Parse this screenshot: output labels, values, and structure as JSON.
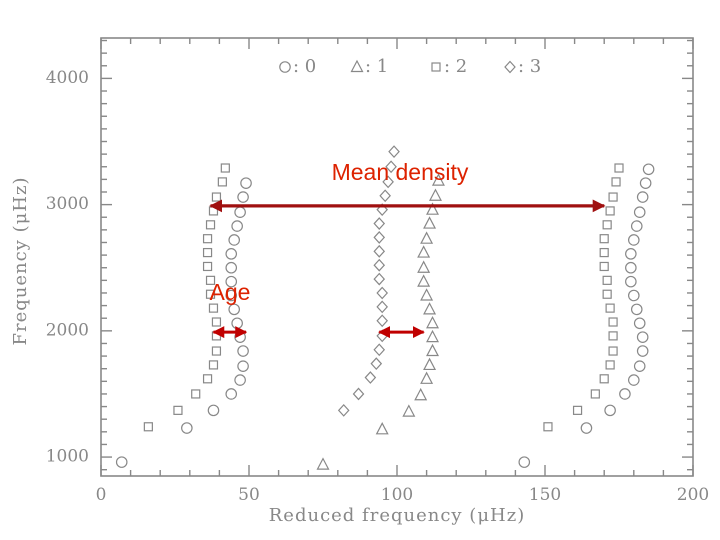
{
  "chart_data": {
    "type": "scatter",
    "title": "",
    "xlabel": "Reduced frequency (μHz)",
    "ylabel": "Frequency (μHz)",
    "xlim": [
      0,
      200
    ],
    "ylim": [
      850,
      4320
    ],
    "x_ticks": [
      0,
      50,
      100,
      150,
      200
    ],
    "x_tick_labels": [
      "0",
      "50",
      "100",
      "150",
      "200"
    ],
    "y_ticks": [
      1000,
      2000,
      3000,
      4000
    ],
    "y_tick_labels": [
      "1000",
      "2000",
      "3000",
      "4000"
    ],
    "grid": false,
    "legend": {
      "placement": "top",
      "entries": [
        {
          "marker": "circle",
          "label": ": 0"
        },
        {
          "marker": "triangle",
          "label": ": 1"
        },
        {
          "marker": "square",
          "label": ": 2"
        },
        {
          "marker": "diamond",
          "label": ": 3"
        }
      ]
    },
    "series": [
      {
        "name": "l = 0",
        "marker": "circle",
        "x": [
          7,
          29,
          38,
          44,
          47,
          48,
          48,
          47,
          46,
          45,
          44,
          44,
          44,
          44,
          45,
          46,
          47,
          48,
          49,
          143,
          164,
          172,
          177,
          180,
          182,
          183,
          183,
          182,
          181,
          180,
          179,
          179,
          179,
          180,
          181,
          182,
          183,
          184,
          185
        ],
        "y": [
          960,
          1230,
          1370,
          1500,
          1610,
          1720,
          1840,
          1950,
          2060,
          2170,
          2280,
          2390,
          2500,
          2610,
          2720,
          2830,
          2940,
          3060,
          3170,
          960,
          1230,
          1370,
          1500,
          1610,
          1720,
          1840,
          1950,
          2060,
          2170,
          2280,
          2390,
          2500,
          2610,
          2720,
          2830,
          2940,
          3060,
          3170,
          3280
        ]
      },
      {
        "name": "l = 1",
        "marker": "triangle",
        "x": [
          75,
          95,
          104,
          108,
          110,
          111,
          112,
          112,
          112,
          111,
          110,
          109,
          109,
          109,
          110,
          111,
          112,
          113,
          114
        ],
        "y": [
          940,
          1220,
          1360,
          1490,
          1620,
          1730,
          1840,
          1950,
          2060,
          2170,
          2280,
          2390,
          2500,
          2620,
          2730,
          2850,
          2960,
          3070,
          3190
        ]
      },
      {
        "name": "l = 2",
        "marker": "square",
        "x": [
          16,
          26,
          32,
          36,
          38,
          39,
          39,
          39,
          38,
          37,
          37,
          36,
          36,
          36,
          37,
          38,
          39,
          41,
          42,
          151,
          161,
          167,
          170,
          172,
          173,
          173,
          173,
          172,
          171,
          171,
          170,
          170,
          170,
          171,
          172,
          173,
          174,
          175
        ],
        "y": [
          1240,
          1370,
          1500,
          1620,
          1730,
          1840,
          1960,
          2070,
          2180,
          2290,
          2400,
          2510,
          2620,
          2730,
          2840,
          2950,
          3060,
          3180,
          3290,
          1240,
          1370,
          1500,
          1620,
          1730,
          1840,
          1960,
          2070,
          2180,
          2290,
          2400,
          2510,
          2620,
          2730,
          2840,
          2950,
          3060,
          3180,
          3290
        ]
      },
      {
        "name": "l = 3",
        "marker": "diamond",
        "x": [
          82,
          87,
          91,
          93,
          94,
          95,
          95,
          95,
          95,
          94,
          94,
          94,
          94,
          94,
          95,
          96,
          97,
          98,
          99
        ],
        "y": [
          1370,
          1500,
          1630,
          1740,
          1850,
          1960,
          2080,
          2190,
          2300,
          2410,
          2520,
          2630,
          2740,
          2850,
          2960,
          3070,
          3180,
          3300,
          3420
        ]
      }
    ],
    "annotations": [
      {
        "text": "Mean density",
        "color": "#dd2200",
        "arrow_color": "#a01010",
        "arrow_from": [
          37,
          2990
        ],
        "arrow_to": [
          170,
          2990
        ]
      },
      {
        "text": "Age",
        "color": "#dd2200",
        "arrow_color": "#c00000",
        "arrow_from": [
          38,
          1990
        ],
        "arrow_to": [
          49,
          1990
        ]
      },
      {
        "text": "",
        "color": "#dd2200",
        "arrow_color": "#c00000",
        "arrow_from": [
          94,
          1990
        ],
        "arrow_to": [
          109,
          1990
        ]
      }
    ]
  }
}
